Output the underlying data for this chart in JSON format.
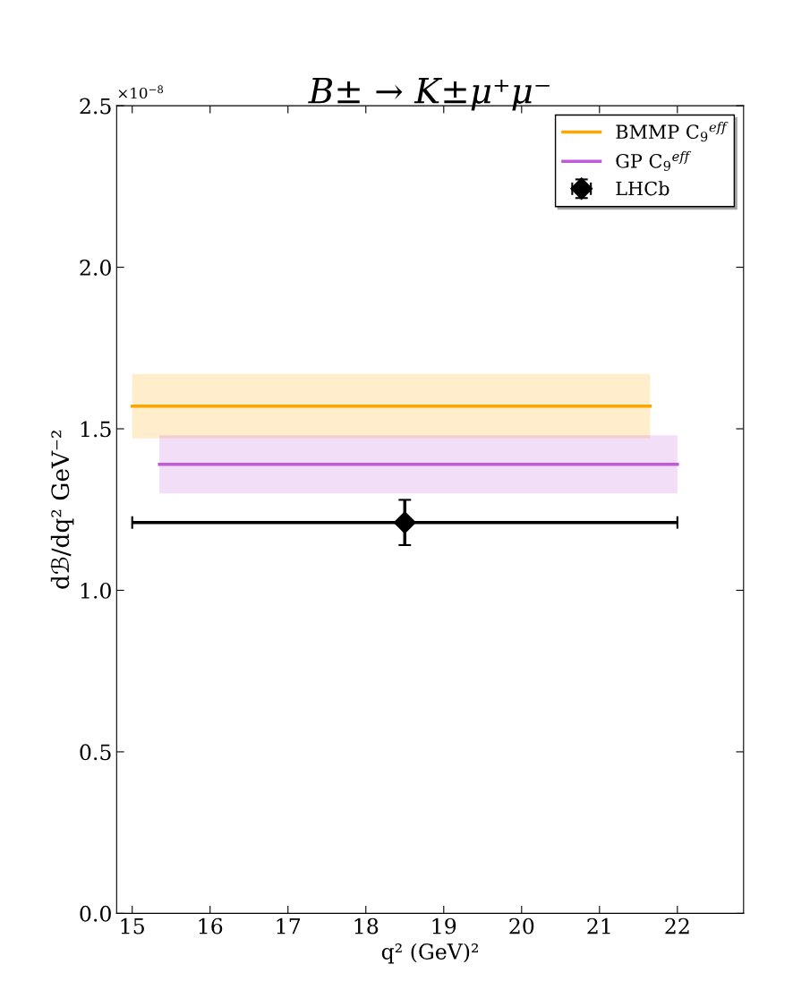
{
  "chart_data": {
    "type": "line",
    "title": "B± → K±μ⁺μ⁻",
    "xlabel": "q² (GeV)²",
    "ylabel": "dℬ/dq² GeV⁻²",
    "annotations": [
      "×10$^{−8}$"
    ],
    "series": [
      {
        "name": "BMMP C$_{9}$$^{eff}$",
        "color": "#ffa500",
        "x": [
          15,
          21.65
        ],
        "values": [
          1.57,
          1.57
        ],
        "lower": [
          1.47,
          1.47
        ],
        "upper": [
          1.67,
          1.67
        ]
      },
      {
        "name": "GP C$_{9}$$^{eff}$",
        "color": "#bf5bd6",
        "x": [
          15.35,
          22
        ],
        "values": [
          1.39,
          1.39
        ],
        "lower": [
          1.3,
          1.3
        ],
        "upper": [
          1.48,
          1.48
        ]
      },
      {
        "name": "LHCb",
        "type": "scatter",
        "color": "#000000",
        "marker": "diamond",
        "x": [
          18.5
        ],
        "values": [
          1.21
        ],
        "errors": [
          [
            1.14,
            1.28
          ]
        ],
        "xerrors": [
          [
            15,
            22
          ]
        ]
      }
    ],
    "xlim": [
      14.8,
      22.85
    ],
    "ylim": [
      0,
      2.5
    ],
    "xticks": [
      15,
      16,
      17,
      18,
      19,
      20,
      21,
      22
    ],
    "yticks": [
      {
        "value": 0,
        "label": "0.0"
      },
      {
        "value": 0.5,
        "label": "0.5"
      },
      {
        "value": 1,
        "label": "1.0"
      },
      {
        "value": 1.5,
        "label": "1.5"
      },
      {
        "value": 2,
        "label": "2.0"
      },
      {
        "value": 2.5,
        "label": "2.5"
      }
    ],
    "legend": "top right",
    "grid": false,
    "marker": "none"
  }
}
